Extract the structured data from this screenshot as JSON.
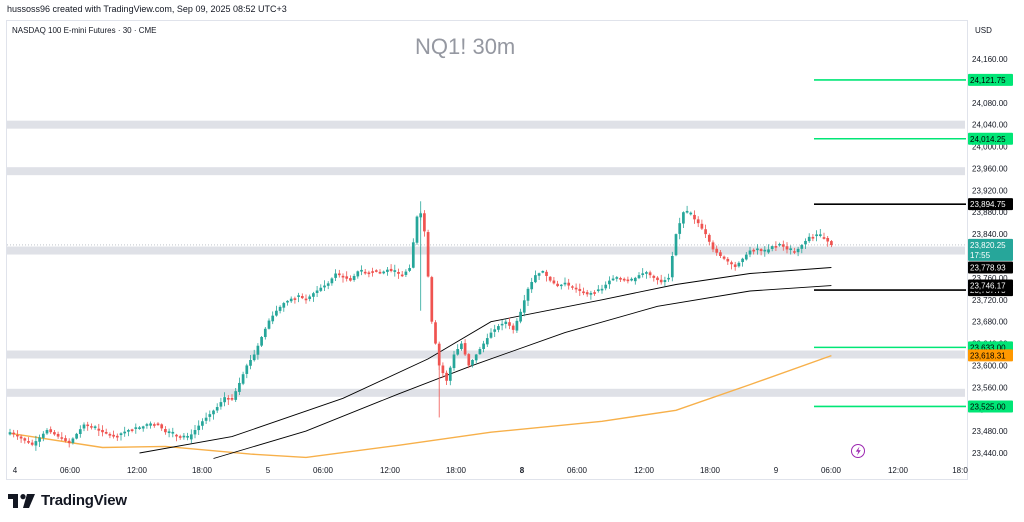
{
  "header": {
    "attribution": "hussoss96 created with TradingView.com, Sep 09, 2025 08:52 UTC+3",
    "symbol_line": "NASDAQ 100 E-mini Futures · 30 · CME",
    "watermark": "NQ1! 30m",
    "currency": "USD"
  },
  "brand": {
    "name": "TradingView"
  },
  "chart_data": {
    "type": "candlestick",
    "y_ticks": [
      23440,
      23480,
      23520,
      23560,
      23600,
      23640,
      23680,
      23720,
      23760,
      23800,
      23840,
      23880,
      23920,
      23960,
      24000,
      24040,
      24080,
      24120,
      24160
    ],
    "y_tick_labels": [
      "23,440.00",
      "23,480.00",
      "23,520.00",
      "23,560.00",
      "23,600.00",
      "23,640.00",
      "23,680.00",
      "23,720.00",
      "23,760.00",
      "23,800.00",
      "23,840.00",
      "23,880.00",
      "23,920.00",
      "23,960.00",
      "24,000.00",
      "24,040.00",
      "24,080.00",
      "24,120.00",
      "24,160.00"
    ],
    "ylim": [
      23420,
      24195
    ],
    "x_ticks": [
      "4",
      "06:00",
      "12:00",
      "18:00",
      "5",
      "06:00",
      "12:00",
      "18:00",
      "8",
      "06:00",
      "12:00",
      "18:00",
      "9",
      "06:00",
      "12:00",
      "18:0"
    ],
    "bold_x_ticks": [
      "8"
    ],
    "grid": false,
    "zones": [
      {
        "price": 24040,
        "thickness": 8
      },
      {
        "price": 23955,
        "thickness": 8
      },
      {
        "price": 23810,
        "thickness": 8
      },
      {
        "price": 23620,
        "thickness": 8
      },
      {
        "price": 23550,
        "thickness": 8
      }
    ],
    "level_lines": [
      {
        "price": 24121.75,
        "label": "24,121.75",
        "color": "#00e676"
      },
      {
        "price": 24014.25,
        "label": "24,014.25",
        "color": "#00e676"
      },
      {
        "price": 23894.75,
        "label": "23,894.75",
        "color": "#000000"
      },
      {
        "price": 23737.75,
        "label": "23,737.75",
        "color": "#000000"
      },
      {
        "price": 23633.0,
        "label": "23,633.00",
        "color": "#00e676"
      },
      {
        "price": 23525.0,
        "label": "23,525.00",
        "color": "#00e676"
      }
    ],
    "indicator_labels": [
      {
        "price": 23778.93,
        "label": "23,778.93",
        "color": "#000000"
      },
      {
        "price": 23746.17,
        "label": "23,746.17",
        "color": "#000000"
      },
      {
        "price": 23618.31,
        "label": "23,618.31",
        "color": "#ff9800"
      }
    ],
    "last_price": {
      "price": 23820.25,
      "label": "23,820.25",
      "countdown": "17:55",
      "color": "#26a69a"
    },
    "colors": {
      "up": "#26a69a",
      "down": "#ef5350",
      "ma_fast": "#000000",
      "ma_slow": "#000000",
      "ma_long": "#f7b04a"
    },
    "candle_path": [
      [
        0,
        23478
      ],
      [
        6,
        23455
      ],
      [
        10,
        23482
      ],
      [
        13,
        23470
      ],
      [
        16,
        23458
      ],
      [
        20,
        23492
      ],
      [
        25,
        23478
      ],
      [
        28,
        23470
      ],
      [
        32,
        23482
      ],
      [
        35,
        23486
      ],
      [
        38,
        23494
      ],
      [
        40,
        23492
      ],
      [
        42,
        23478
      ],
      [
        46,
        23470
      ],
      [
        48,
        23466
      ],
      [
        52,
        23498
      ],
      [
        56,
        23524
      ],
      [
        58,
        23542
      ],
      [
        60,
        23538
      ],
      [
        62,
        23568
      ],
      [
        64,
        23600
      ],
      [
        66,
        23620
      ],
      [
        68,
        23652
      ],
      [
        70,
        23682
      ],
      [
        72,
        23700
      ],
      [
        74,
        23714
      ],
      [
        76,
        23722
      ],
      [
        78,
        23726
      ],
      [
        80,
        23720
      ],
      [
        82,
        23732
      ],
      [
        84,
        23742
      ],
      [
        86,
        23750
      ],
      [
        88,
        23768
      ],
      [
        90,
        23762
      ],
      [
        92,
        23755
      ],
      [
        94,
        23772
      ],
      [
        96,
        23770
      ],
      [
        98,
        23774
      ],
      [
        100,
        23768
      ],
      [
        102,
        23775
      ],
      [
        104,
        23770
      ],
      [
        106,
        23765
      ],
      [
        108,
        23778
      ],
      [
        110,
        23872
      ],
      [
        111,
        23878
      ],
      [
        112,
        23845
      ],
      [
        114,
        23680
      ],
      [
        116,
        23600
      ],
      [
        118,
        23572
      ],
      [
        120,
        23620
      ],
      [
        122,
        23640
      ],
      [
        124,
        23600
      ],
      [
        126,
        23620
      ],
      [
        128,
        23640
      ],
      [
        130,
        23660
      ],
      [
        132,
        23672
      ],
      [
        134,
        23680
      ],
      [
        136,
        23665
      ],
      [
        138,
        23698
      ],
      [
        140,
        23740
      ],
      [
        142,
        23765
      ],
      [
        144,
        23772
      ],
      [
        146,
        23755
      ],
      [
        148,
        23745
      ],
      [
        150,
        23750
      ],
      [
        152,
        23742
      ],
      [
        154,
        23736
      ],
      [
        156,
        23730
      ],
      [
        158,
        23735
      ],
      [
        160,
        23740
      ],
      [
        162,
        23755
      ],
      [
        164,
        23760
      ],
      [
        166,
        23758
      ],
      [
        168,
        23755
      ],
      [
        170,
        23765
      ],
      [
        172,
        23770
      ],
      [
        174,
        23760
      ],
      [
        176,
        23752
      ],
      [
        178,
        23760
      ],
      [
        180,
        23840
      ],
      [
        182,
        23880
      ],
      [
        184,
        23874
      ],
      [
        186,
        23860
      ],
      [
        188,
        23840
      ],
      [
        190,
        23812
      ],
      [
        192,
        23800
      ],
      [
        194,
        23790
      ],
      [
        196,
        23780
      ],
      [
        198,
        23795
      ],
      [
        200,
        23810
      ],
      [
        202,
        23812
      ],
      [
        204,
        23806
      ],
      [
        206,
        23818
      ],
      [
        208,
        23822
      ],
      [
        210,
        23812
      ],
      [
        212,
        23806
      ],
      [
        214,
        23820
      ],
      [
        216,
        23835
      ],
      [
        218,
        23838
      ],
      [
        220,
        23833
      ],
      [
        222,
        23820
      ]
    ],
    "ma_fast_path": [
      [
        35,
        23440
      ],
      [
        60,
        23470
      ],
      [
        90,
        23540
      ],
      [
        113,
        23612
      ],
      [
        130,
        23680
      ],
      [
        160,
        23720
      ],
      [
        180,
        23748
      ],
      [
        200,
        23768
      ],
      [
        222,
        23779
      ]
    ],
    "ma_slow_path": [
      [
        55,
        23430
      ],
      [
        80,
        23480
      ],
      [
        105,
        23548
      ],
      [
        125,
        23600
      ],
      [
        150,
        23660
      ],
      [
        175,
        23708
      ],
      [
        200,
        23736
      ],
      [
        222,
        23746
      ]
    ],
    "ma_long_path": [
      [
        0,
        23476
      ],
      [
        25,
        23450
      ],
      [
        42,
        23452
      ],
      [
        65,
        23438
      ],
      [
        80,
        23432
      ],
      [
        105,
        23454
      ],
      [
        130,
        23478
      ],
      [
        160,
        23498
      ],
      [
        180,
        23518
      ],
      [
        200,
        23565
      ],
      [
        222,
        23618
      ]
    ]
  }
}
